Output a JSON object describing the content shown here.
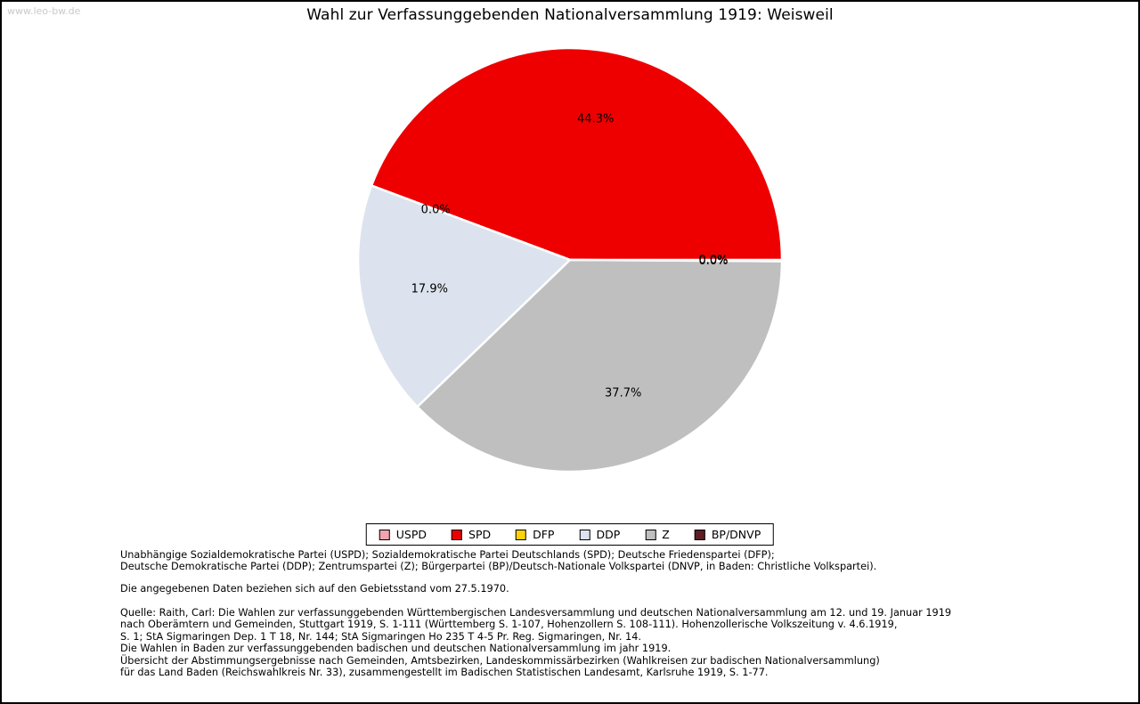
{
  "page": {
    "watermark": "www.leo-bw.de",
    "title": "Wahl zur Verfassunggebenden Nationalversammlung 1919: Weisweil"
  },
  "chart_data": {
    "type": "pie",
    "title": "Wahl zur Verfassunggebenden Nationalversammlung 1919: Weisweil",
    "start_angle_deg": 0,
    "direction": "counterclockwise",
    "legend_position": "bottom-center",
    "slices": [
      {
        "label": "USPD",
        "value_pct": 0.0,
        "label_text": "0.0%",
        "color": "#f2a3ae"
      },
      {
        "label": "SPD",
        "value_pct": 44.3,
        "label_text": "44.3%",
        "color": "#ee0000"
      },
      {
        "label": "DFP",
        "value_pct": 0.0,
        "label_text": "0.0%",
        "color": "#ffd400"
      },
      {
        "label": "DDP",
        "value_pct": 17.9,
        "label_text": "17.9%",
        "color": "#dce3ee"
      },
      {
        "label": "Z",
        "value_pct": 37.7,
        "label_text": "37.7%",
        "color": "#bfbfbf"
      },
      {
        "label": "BP/DNVP",
        "value_pct": 0.0,
        "label_text": "0.0%",
        "color": "#5c1f24"
      }
    ]
  },
  "footer": {
    "party_legend_lines": [
      "Unabhängige Sozialdemokratische Partei (USPD); Sozialdemokratische Partei Deutschlands (SPD); Deutsche Friedenspartei (DFP);",
      "Deutsche Demokratische Partei (DDP); Zentrumspartei (Z); Bürgerpartei (BP)/Deutsch-Nationale Volkspartei (DNVP, in Baden: Christliche Volkspartei)."
    ],
    "note": "Die angegebenen Daten beziehen sich auf den Gebietsstand vom 27.5.1970.",
    "source_lines": [
      "Quelle: Raith, Carl: Die Wahlen zur verfassunggebenden Württembergischen Landesversammlung und deutschen Nationalversammlung am 12. und 19. Januar 1919",
      "nach Oberämtern und Gemeinden, Stuttgart 1919, S. 1-111 (Württemberg S. 1-107, Hohenzollern S. 108-111). Hohenzollerische Volkszeitung v. 4.6.1919,",
      "S. 1; StA Sigmaringen Dep. 1 T 18, Nr. 144; StA Sigmaringen Ho 235 T 4-5 Pr. Reg. Sigmaringen, Nr. 14.",
      "Die Wahlen in Baden zur verfassunggebenden badischen und deutschen Nationalversammlung im jahr 1919.",
      "Übersicht der Abstimmungsergebnisse nach Gemeinden, Amtsbezirken, Landeskommissärbezirken (Wahlkreisen zur badischen Nationalversammlung)",
      "für das Land Baden (Reichswahlkreis Nr. 33), zusammengestellt im Badischen Statistischen Landesamt, Karlsruhe 1919, S. 1-77."
    ]
  }
}
